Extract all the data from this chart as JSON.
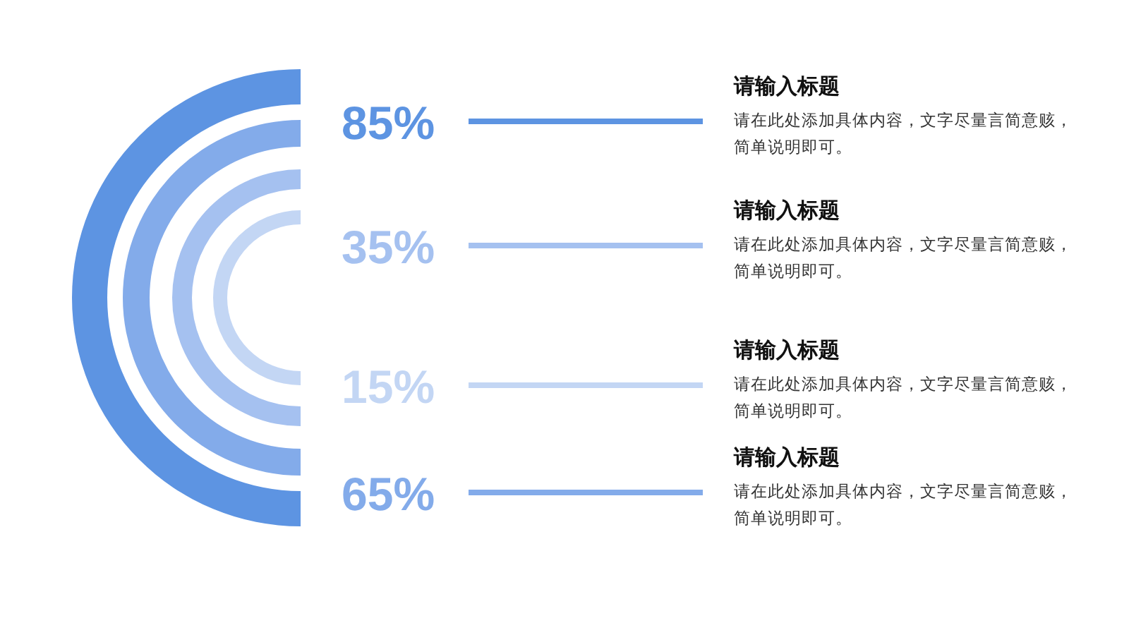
{
  "chart_data": {
    "type": "other",
    "categories": [
      "请输入标题",
      "请输入标题",
      "请输入标题",
      "请输入标题"
    ],
    "values": [
      85,
      35,
      15,
      65
    ],
    "value_labels": [
      "85%",
      "35%",
      "15%",
      "65%"
    ],
    "colors": [
      "#5d94e2",
      "#a5c1f0",
      "#c3d6f4",
      "#83abea"
    ],
    "annotations": [
      "请在此处添加具体内容，文字尽量言简意赅，简单说明即可。",
      "请在此处添加具体内容，文字尽量言简意赅，简单说明即可。",
      "请在此处添加具体内容，文字尽量言简意赅，简单说明即可。",
      "请在此处添加具体内容，文字尽量言简意赅，简单说明即可。"
    ]
  }
}
